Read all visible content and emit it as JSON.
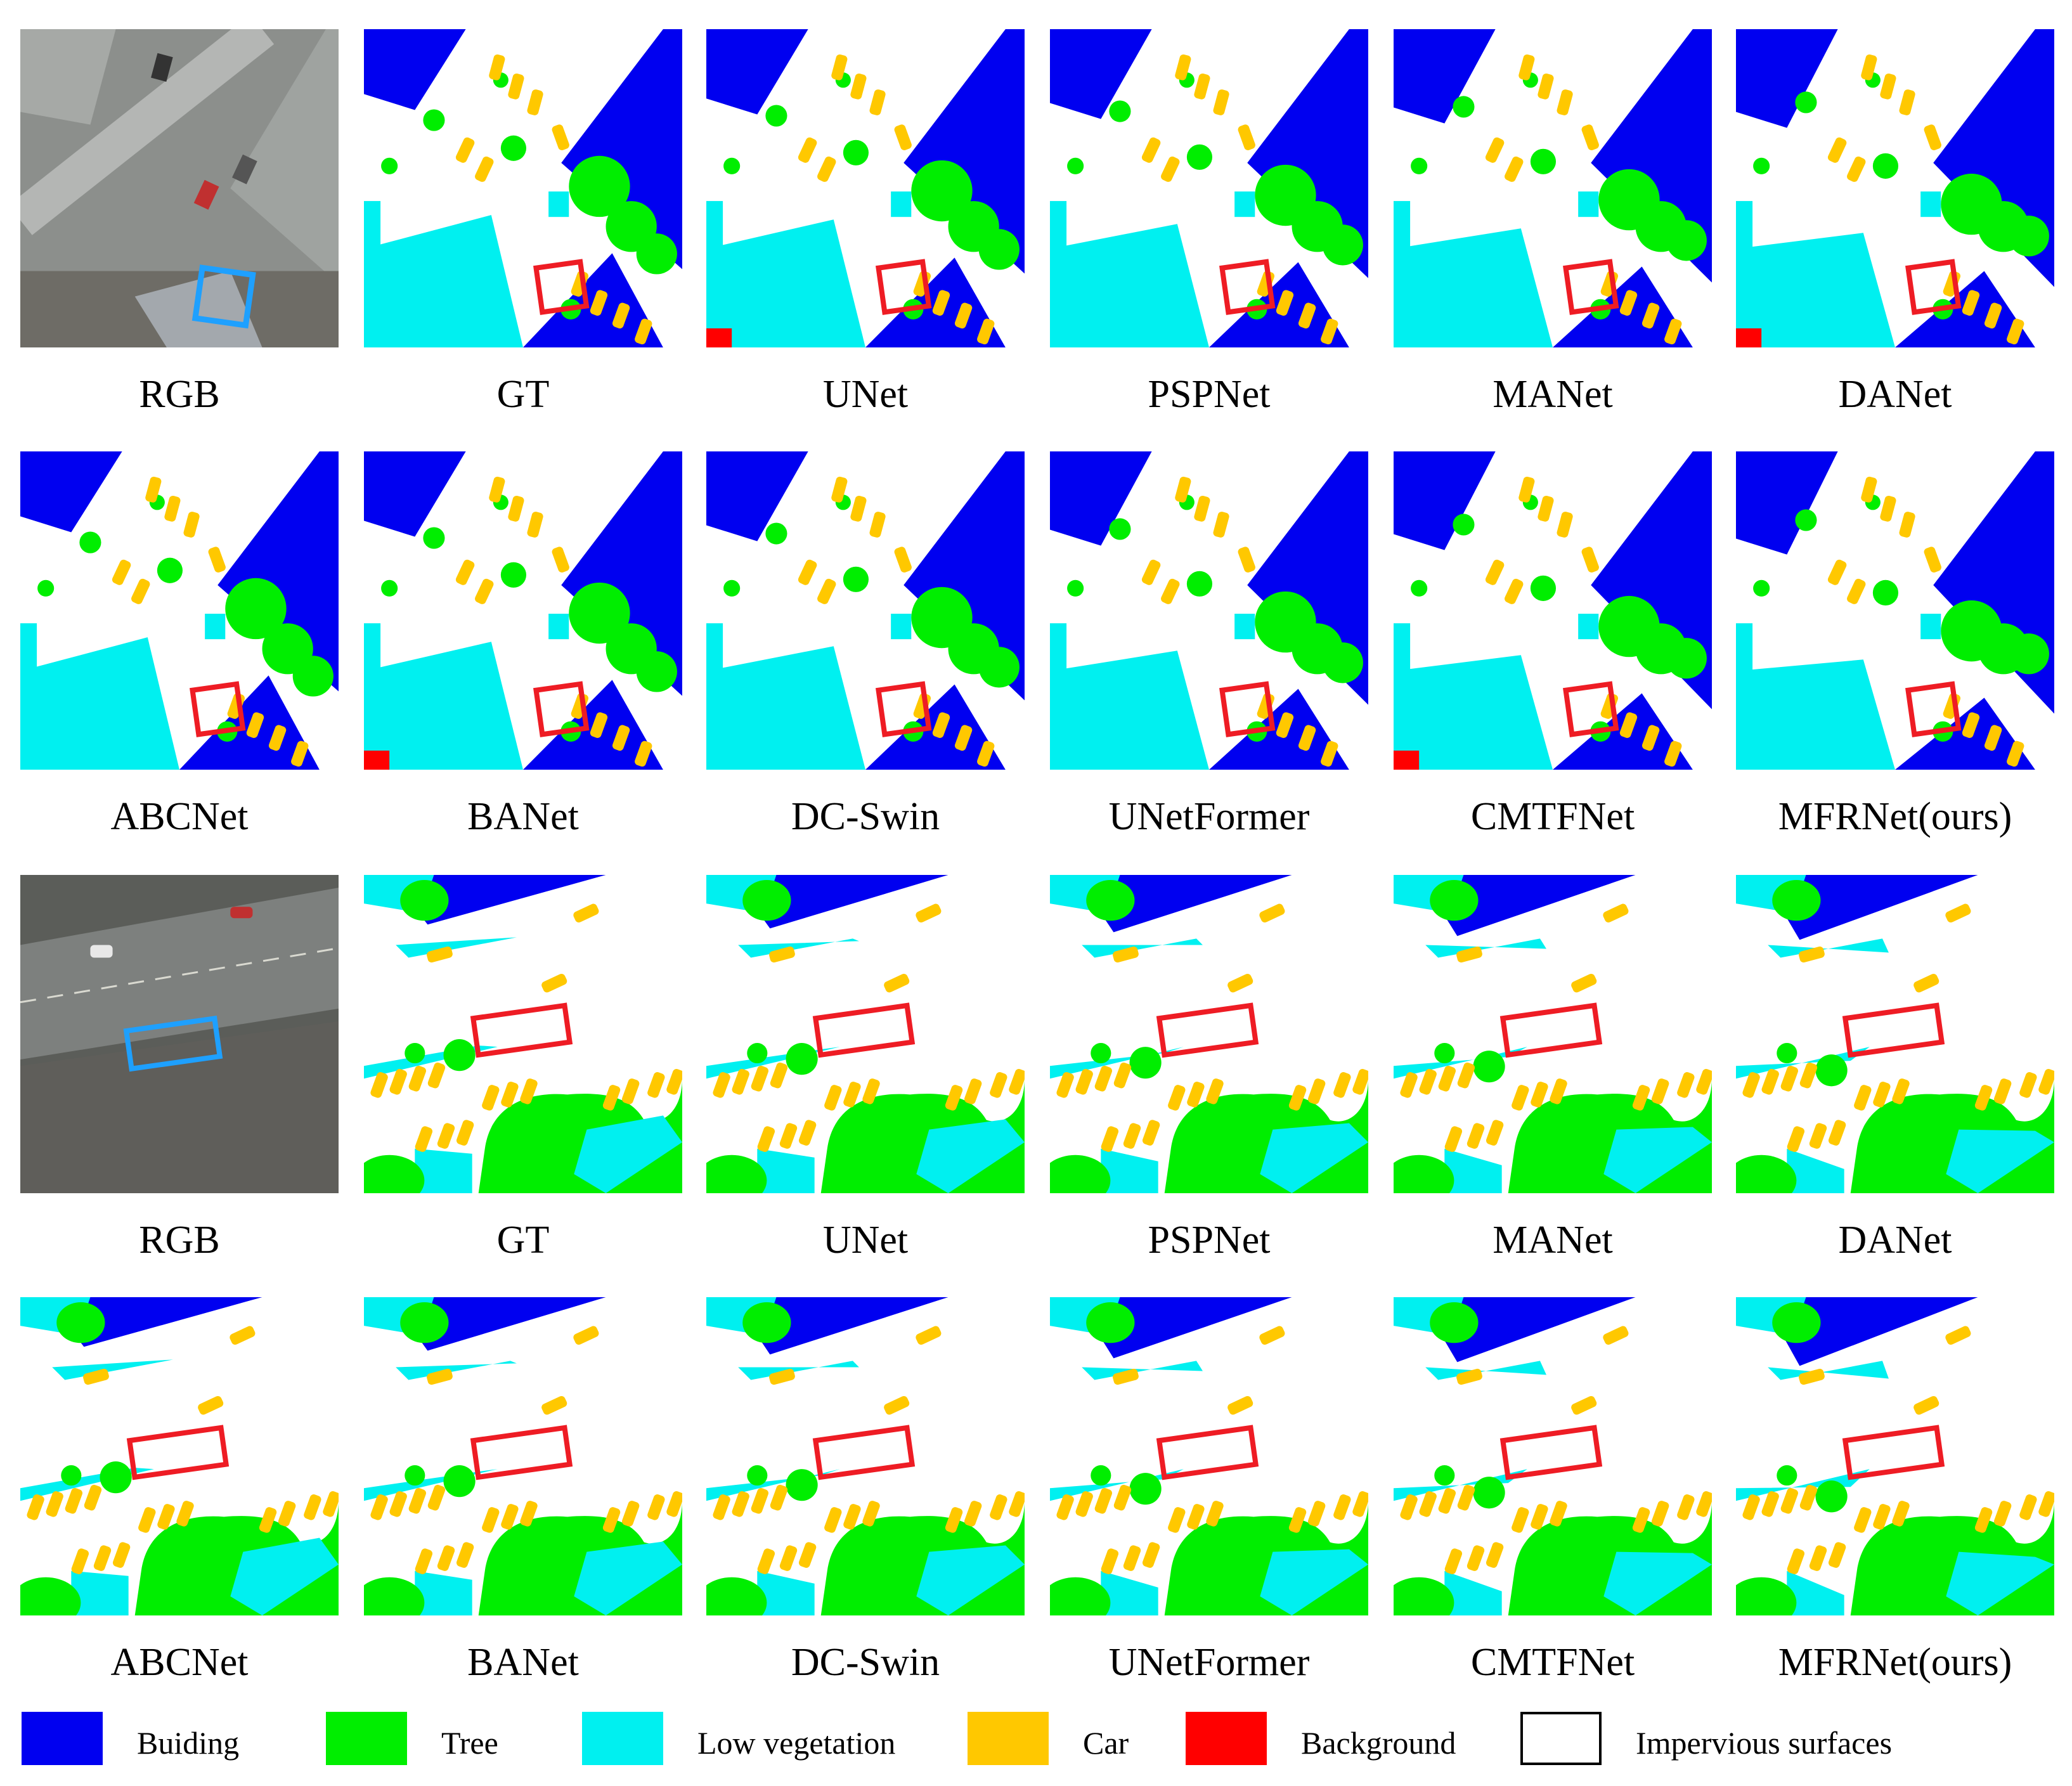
{
  "classes": [
    {
      "key": "building",
      "label": "Buiding",
      "color": "#0000f0"
    },
    {
      "key": "tree",
      "label": "Tree",
      "color": "#00ee00"
    },
    {
      "key": "lowveg",
      "label": "Low vegetation",
      "color": "#00f0f0"
    },
    {
      "key": "car",
      "label": "Car",
      "color": "#ffc800"
    },
    {
      "key": "background",
      "label": "Background",
      "color": "#ff0000"
    },
    {
      "key": "impervious",
      "label": "Impervious surfaces",
      "color": "#ffffff"
    }
  ],
  "highlight_color": "#ee1c24",
  "rgb_box_color": "#1ea0ff",
  "rows": [
    {
      "scene": "scene-1",
      "panels": [
        "RGB",
        "GT",
        "UNet",
        "PSPNet",
        "MANet",
        "DANet"
      ]
    },
    {
      "scene": "scene-1",
      "panels": [
        "ABCNet",
        "BANet",
        "DC-Swin",
        "UNetFormer",
        "CMTFNet",
        "MFRNet(ours)"
      ]
    },
    {
      "scene": "scene-2",
      "panels": [
        "RGB",
        "GT",
        "UNet",
        "PSPNet",
        "MANet",
        "DANet"
      ]
    },
    {
      "scene": "scene-2",
      "panels": [
        "ABCNet",
        "BANet",
        "DC-Swin",
        "UNetFormer",
        "CMTFNet",
        "MFRNet(ours)"
      ]
    }
  ]
}
